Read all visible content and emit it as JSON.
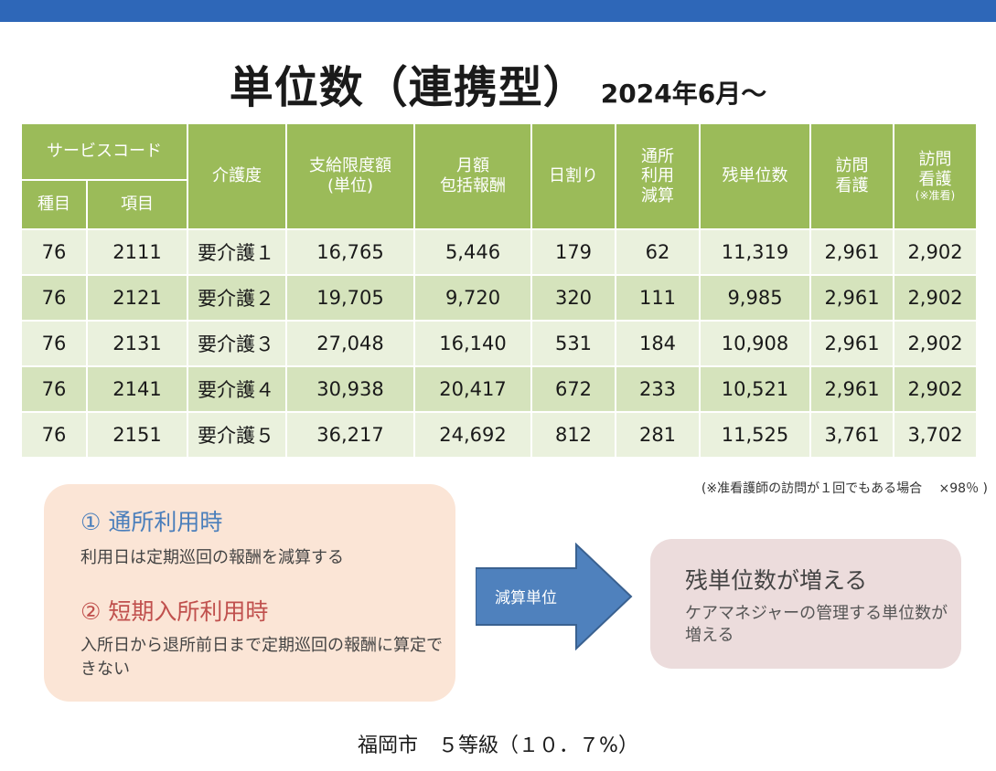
{
  "title": {
    "main": "単位数（連携型）",
    "sub": "2024年6月～"
  },
  "table": {
    "group_header": "サービスコード",
    "col_shumoku": "種目",
    "col_koumoku": "項目",
    "col_kaigodo": "介護度",
    "col_gendo_1": "支給限度額",
    "col_gendo_2": "(単位)",
    "col_getsugaku_1": "月額",
    "col_getsugaku_2": "包括報酬",
    "col_hiwari": "日割り",
    "col_tsusho_1": "通所",
    "col_tsusho_2": "利用",
    "col_tsusho_3": "減算",
    "col_zan": "残単位数",
    "col_houmon_1": "訪問",
    "col_houmon_2": "看護",
    "col_houmon_jun_1": "訪問",
    "col_houmon_jun_2": "看護",
    "col_houmon_jun_3": "(※准看)",
    "rows": [
      {
        "shumoku": "76",
        "koumoku": "2111",
        "kaigodo": "要介護１",
        "gendo": "16,765",
        "getsugaku": "5,446",
        "hiwari": "179",
        "tsusho": "62",
        "zan": "11,319",
        "houmon": "2,961",
        "houmon_jun": "2,902"
      },
      {
        "shumoku": "76",
        "koumoku": "2121",
        "kaigodo": "要介護２",
        "gendo": "19,705",
        "getsugaku": "9,720",
        "hiwari": "320",
        "tsusho": "111",
        "zan": "9,985",
        "houmon": "2,961",
        "houmon_jun": "2,902"
      },
      {
        "shumoku": "76",
        "koumoku": "2131",
        "kaigodo": "要介護３",
        "gendo": "27,048",
        "getsugaku": "16,140",
        "hiwari": "531",
        "tsusho": "184",
        "zan": "10,908",
        "houmon": "2,961",
        "houmon_jun": "2,902"
      },
      {
        "shumoku": "76",
        "koumoku": "2141",
        "kaigodo": "要介護４",
        "gendo": "30,938",
        "getsugaku": "20,417",
        "hiwari": "672",
        "tsusho": "233",
        "zan": "10,521",
        "houmon": "2,961",
        "houmon_jun": "2,902"
      },
      {
        "shumoku": "76",
        "koumoku": "2151",
        "kaigodo": "要介護５",
        "gendo": "36,217",
        "getsugaku": "24,692",
        "hiwari": "812",
        "tsusho": "281",
        "zan": "11,525",
        "houmon": "3,761",
        "houmon_jun": "3,702"
      }
    ]
  },
  "note": "(※准看護師の訪問が１回でもある場合　 ×98％ )",
  "left_box": {
    "heading1": "① 通所利用時",
    "text1": "利用日は定期巡回の報酬を減算する",
    "heading2": "② 短期入所利用時",
    "text2": "入所日から退所前日まで定期巡回の報酬に算定できない"
  },
  "arrow": {
    "label": "減算単位"
  },
  "right_box": {
    "heading": "残単位数が増える",
    "text": "ケアマネジャーの管理する単位数が増える"
  },
  "footer": "福岡市　５等級（１０．７%）",
  "colors": {
    "top_bar": "#2e67b8",
    "header_green": "#9bbb59",
    "row_light": "#eaf1dd",
    "row_dark": "#d5e3bc",
    "arrow_fill": "#4f81bd",
    "left_box_bg": "#fbe5d6",
    "right_box_bg": "#ecdcdc",
    "heading1_color": "#4a7ebb",
    "heading2_color": "#c0504d"
  }
}
